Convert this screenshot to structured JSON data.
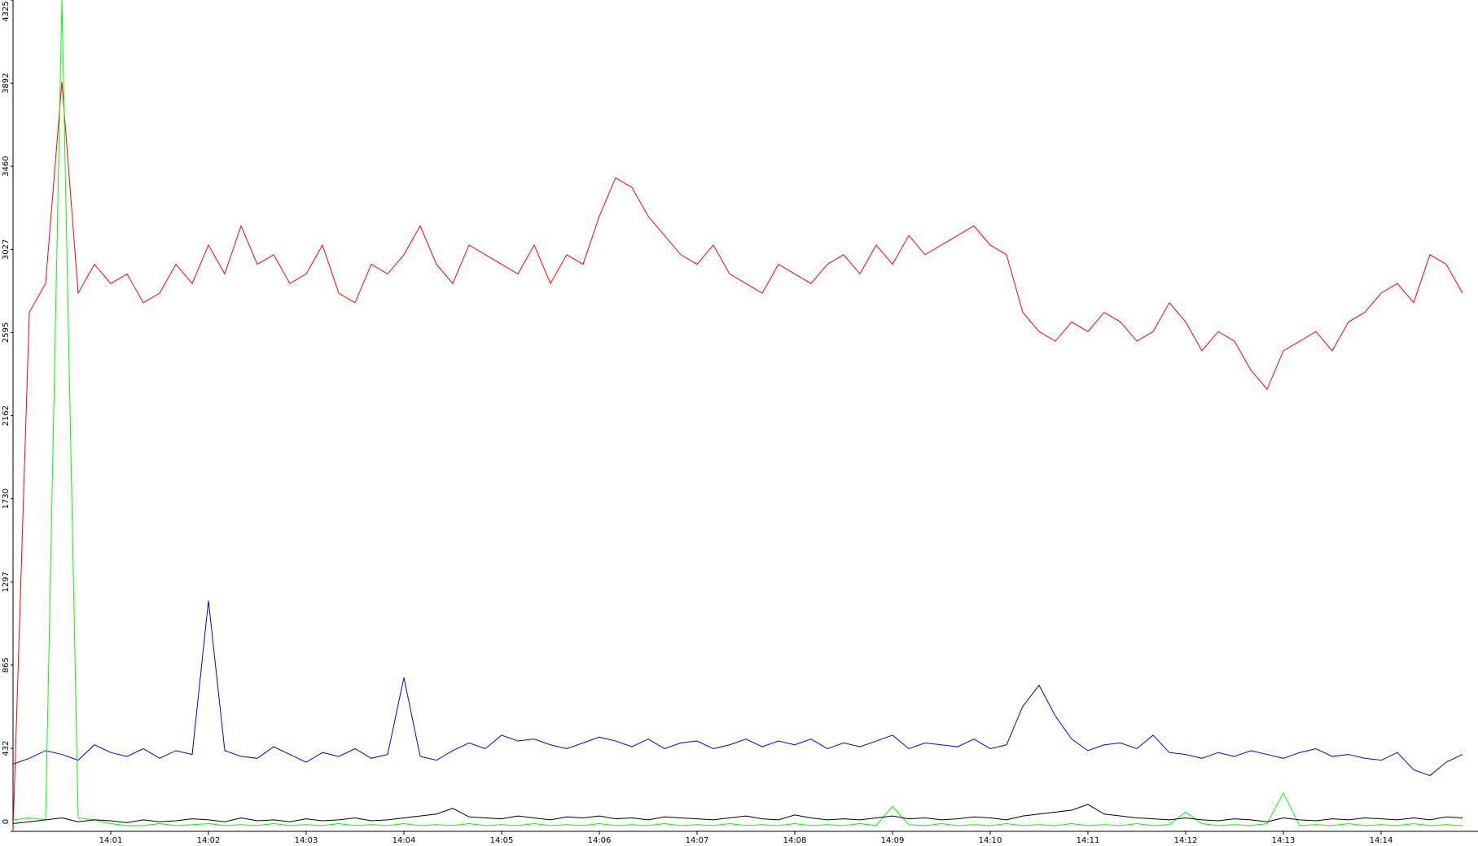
{
  "chart_data": {
    "type": "line",
    "categories": [
      null,
      null,
      null,
      null,
      null,
      null,
      "14:01",
      null,
      null,
      null,
      null,
      null,
      "14:02",
      null,
      null,
      null,
      null,
      null,
      "14:03",
      null,
      null,
      null,
      null,
      null,
      "14:04",
      null,
      null,
      null,
      null,
      null,
      "14:05",
      null,
      null,
      null,
      null,
      null,
      "14:06",
      null,
      null,
      null,
      null,
      null,
      "14:07",
      null,
      null,
      null,
      null,
      null,
      "14:08",
      null,
      null,
      null,
      null,
      null,
      "14:09",
      null,
      null,
      null,
      null,
      null,
      "14:10",
      null,
      null,
      null,
      null,
      null,
      "14:11",
      null,
      null,
      null,
      null,
      null,
      "14:12",
      null,
      null,
      null,
      null,
      null,
      "14:13",
      null,
      null,
      null,
      null,
      null,
      "14:14",
      null,
      null,
      null,
      null,
      null
    ],
    "series": [
      {
        "color": "#ff0000",
        "values": [
          0,
          2700,
          2850,
          3900,
          2800,
          2950,
          2850,
          2900,
          2750,
          2800,
          2950,
          2850,
          3050,
          2900,
          3150,
          2950,
          3000,
          2850,
          2900,
          3050,
          2800,
          2750,
          2950,
          2900,
          3000,
          3150,
          2950,
          2850,
          3050,
          3000,
          2950,
          2900,
          3050,
          2850,
          3000,
          2950,
          3200,
          3400,
          3350,
          3200,
          3100,
          3000,
          2950,
          3050,
          2900,
          2850,
          2800,
          2950,
          2900,
          2850,
          2950,
          3000,
          2900,
          3050,
          2950,
          3100,
          3000,
          3050,
          3100,
          3150,
          3050,
          3000,
          2700,
          2600,
          2550,
          2650,
          2600,
          2700,
          2650,
          2550,
          2600,
          2750,
          2650,
          2500,
          2600,
          2550,
          2400,
          2300,
          2500,
          2550,
          2600,
          2500,
          2650,
          2700,
          2800,
          2850,
          2750,
          3000,
          2950,
          2800
        ]
      },
      {
        "color": "#0000ff",
        "values": [
          350,
          380,
          420,
          400,
          370,
          450,
          410,
          390,
          430,
          380,
          420,
          400,
          1200,
          420,
          390,
          380,
          440,
          400,
          360,
          410,
          390,
          430,
          380,
          400,
          800,
          390,
          370,
          420,
          460,
          430,
          500,
          470,
          480,
          450,
          430,
          460,
          490,
          470,
          440,
          480,
          430,
          460,
          470,
          430,
          450,
          480,
          440,
          470,
          450,
          480,
          430,
          460,
          440,
          470,
          500,
          430,
          460,
          450,
          440,
          480,
          430,
          450,
          650,
          760,
          600,
          480,
          420,
          450,
          460,
          430,
          500,
          410,
          400,
          380,
          410,
          390,
          420,
          400,
          380,
          410,
          430,
          390,
          400,
          380,
          370,
          410,
          320,
          290,
          360,
          400
        ]
      },
      {
        "color": "#00ff00",
        "values": [
          60,
          70,
          60,
          4325,
          70,
          60,
          40,
          30,
          30,
          40,
          30,
          35,
          40,
          30,
          35,
          30,
          40,
          30,
          35,
          30,
          40,
          30,
          35,
          30,
          40,
          30,
          35,
          30,
          40,
          30,
          35,
          30,
          40,
          30,
          35,
          30,
          40,
          30,
          35,
          30,
          40,
          30,
          35,
          30,
          40,
          30,
          35,
          30,
          40,
          30,
          35,
          30,
          40,
          30,
          130,
          35,
          30,
          40,
          30,
          35,
          30,
          40,
          30,
          35,
          30,
          40,
          30,
          35,
          30,
          40,
          30,
          35,
          100,
          40,
          30,
          35,
          30,
          40,
          200,
          30,
          35,
          30,
          40,
          30,
          35,
          30,
          40,
          30,
          35,
          30
        ]
      },
      {
        "color": "#000000",
        "values": [
          40,
          50,
          60,
          70,
          50,
          60,
          55,
          45,
          60,
          50,
          55,
          65,
          60,
          50,
          70,
          55,
          60,
          50,
          65,
          55,
          60,
          70,
          55,
          60,
          70,
          80,
          90,
          120,
          75,
          70,
          65,
          80,
          70,
          60,
          75,
          70,
          80,
          65,
          70,
          60,
          75,
          70,
          65,
          60,
          70,
          80,
          65,
          60,
          85,
          70,
          60,
          65,
          60,
          70,
          80,
          65,
          70,
          60,
          65,
          75,
          70,
          60,
          80,
          90,
          100,
          110,
          140,
          90,
          80,
          70,
          65,
          60,
          70,
          60,
          55,
          65,
          60,
          50,
          70,
          60,
          55,
          65,
          60,
          70,
          65,
          60,
          70,
          60,
          75,
          70
        ]
      }
    ],
    "ylim": [
      0,
      4325
    ],
    "yticks": [
      0,
      432,
      865,
      1297,
      1730,
      2162,
      2595,
      3027,
      3460,
      3892,
      4325
    ]
  }
}
